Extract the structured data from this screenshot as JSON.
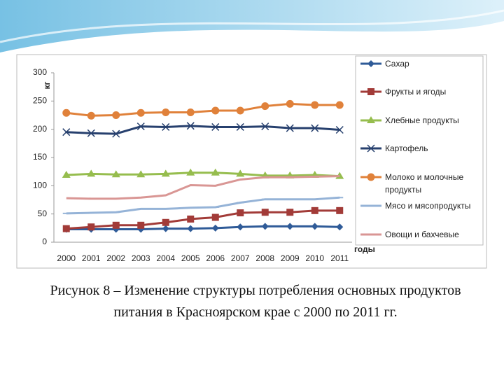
{
  "chart_data": {
    "type": "line",
    "categories": [
      "2000",
      "2001",
      "2002",
      "2003",
      "2004",
      "2005",
      "2006",
      "2007",
      "2008",
      "2009",
      "2010",
      "2011"
    ],
    "x_label": "годы",
    "y_label": "кг",
    "ylim": [
      0,
      300
    ],
    "yticks": [
      0,
      50,
      100,
      150,
      200,
      250,
      300
    ],
    "grid": false,
    "legend_position": "right",
    "series": [
      {
        "name": "Сахар",
        "color": "#2f5b98",
        "marker": "diamond",
        "values": [
          23,
          23,
          23,
          23,
          24,
          24,
          25,
          27,
          28,
          28,
          28,
          27
        ]
      },
      {
        "name": "Фрукты и ягоды",
        "color": "#a23b38",
        "marker": "square",
        "values": [
          24,
          27,
          30,
          30,
          35,
          41,
          44,
          52,
          53,
          53,
          56,
          56
        ]
      },
      {
        "name": "Хлебные продукты",
        "color": "#96bd4e",
        "marker": "triangle",
        "values": [
          119,
          121,
          120,
          120,
          121,
          123,
          123,
          121,
          118,
          118,
          119,
          117
        ]
      },
      {
        "name": "Картофель",
        "color": "#27406e",
        "marker": "x",
        "values": [
          195,
          193,
          192,
          205,
          204,
          206,
          204,
          204,
          205,
          202,
          202,
          199
        ]
      },
      {
        "name": "Молоко и молочные продукты",
        "color": "#e0813a",
        "marker": "circle",
        "values": [
          229,
          224,
          225,
          229,
          230,
          230,
          233,
          233,
          241,
          245,
          243,
          243
        ]
      },
      {
        "name": "Мясо и мясопродукты",
        "color": "#95b3d7",
        "marker": "dash",
        "values": [
          51,
          52,
          53,
          59,
          59,
          61,
          62,
          70,
          76,
          76,
          76,
          79
        ]
      },
      {
        "name": "Овощи и бахчевые",
        "color": "#d99694",
        "marker": "none",
        "values": [
          78,
          77,
          77,
          79,
          83,
          101,
          100,
          111,
          115,
          115,
          116,
          117
        ]
      }
    ]
  },
  "caption": "Рисунок 8 – Изменение структуры потребления основных продуктов питания в Красноярском крае с 2000 по 2011 гг."
}
